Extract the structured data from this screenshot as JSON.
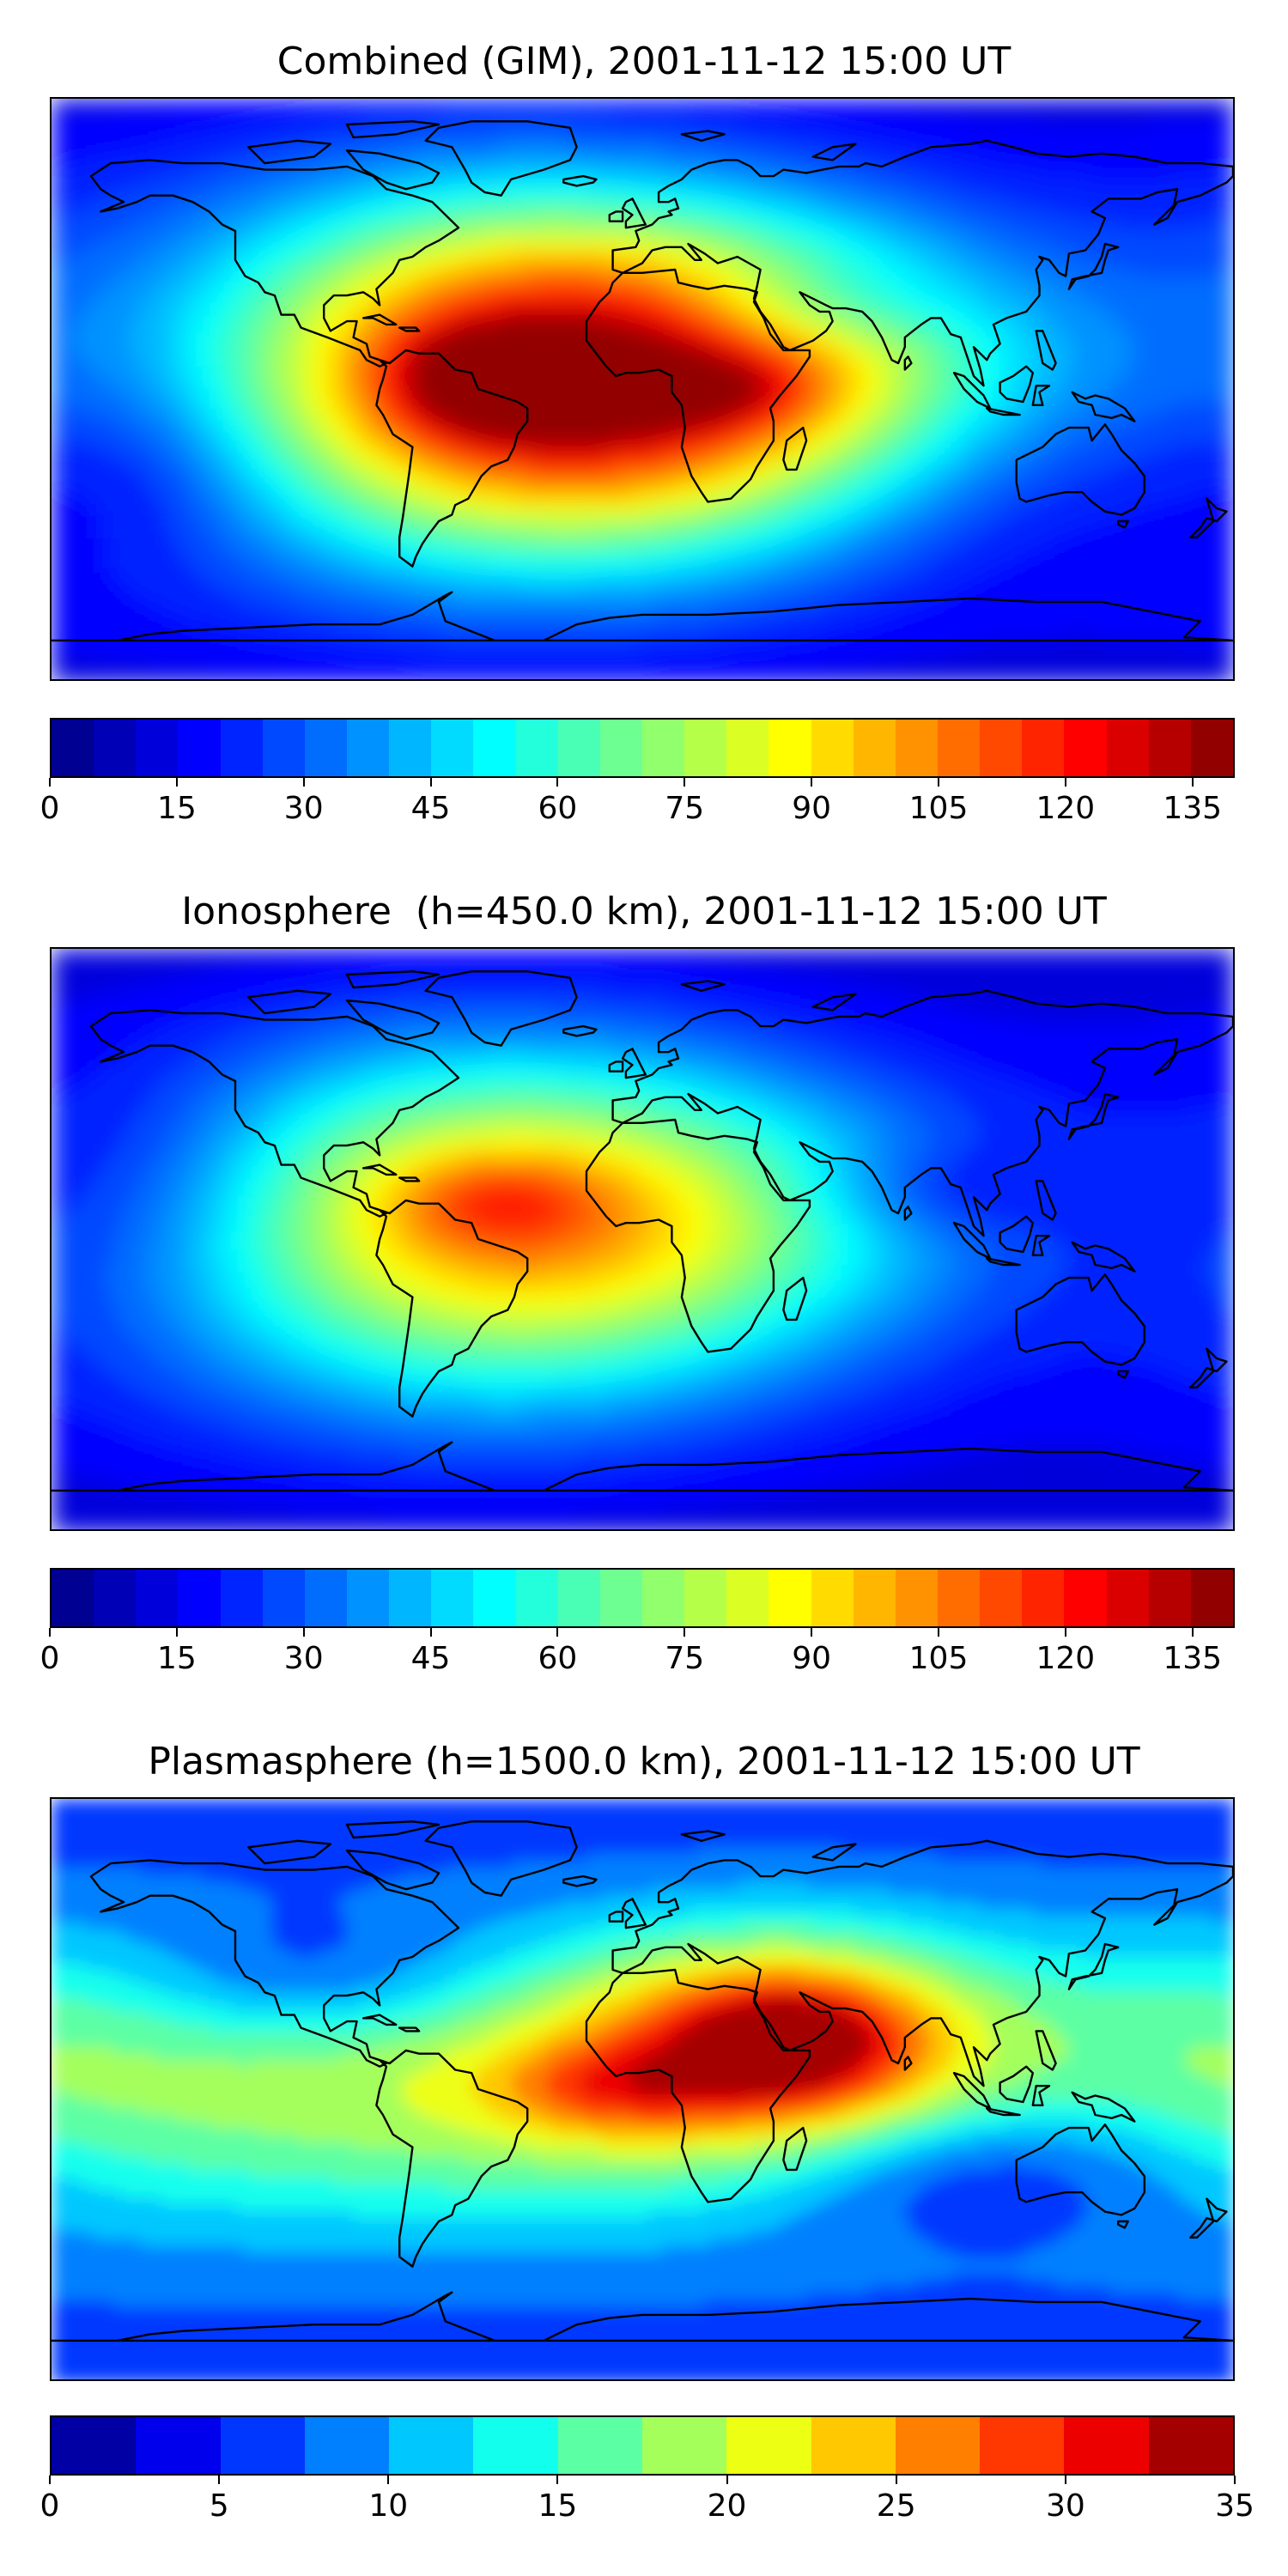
{
  "panels": [
    {
      "title": "Combined (GIM), 2001-11-12 15:00 UT",
      "colorbar": {
        "min": 0,
        "max": 140,
        "n_levels": 28,
        "ticks": [
          0,
          15,
          30,
          45,
          60,
          75,
          90,
          105,
          120,
          135
        ]
      },
      "field": {
        "background": 18,
        "blobs": [
          {
            "lon": -50,
            "lat": 8,
            "slon": 60,
            "slat": 40,
            "amp": 50
          },
          {
            "lon": -10,
            "lat": 0,
            "slon": 60,
            "slat": 38,
            "amp": 38
          },
          {
            "lon": 35,
            "lat": 2,
            "slon": 90,
            "slat": 32,
            "amp": 20
          },
          {
            "lon": 20,
            "lat": 5,
            "slon": 60,
            "slat": 35,
            "amp": 25
          },
          {
            "lon": -48,
            "lat": 0,
            "slon": 18,
            "slat": 10,
            "amp": 28
          },
          {
            "lon": -10,
            "lat": -2,
            "slon": 20,
            "slat": 8,
            "amp": 22
          },
          {
            "lon": 28,
            "lat": -1,
            "slon": 16,
            "slat": 8,
            "amp": 14
          },
          {
            "lon": -45,
            "lat": 10,
            "slon": 18,
            "slat": 7,
            "amp": 14
          },
          {
            "lon": -75,
            "lat": 0,
            "slon": 100,
            "slat": 55,
            "amp": 12
          },
          {
            "lon": 65,
            "lat": 12,
            "slon": 40,
            "slat": 22,
            "amp": 10
          },
          {
            "lon": 50,
            "lat": 25,
            "slon": 30,
            "slat": 10,
            "amp": -18
          },
          {
            "lon": -150,
            "lat": -25,
            "slon": 30,
            "slat": 20,
            "amp": -10
          },
          {
            "lon": 120,
            "lat": -30,
            "slon": 60,
            "slat": 25,
            "amp": -8
          }
        ]
      }
    },
    {
      "title": "Ionosphere  (h=450.0 km), 2001-11-12 15:00 UT",
      "colorbar": {
        "min": 0,
        "max": 140,
        "n_levels": 28,
        "ticks": [
          0,
          15,
          30,
          45,
          60,
          75,
          90,
          105,
          120,
          135
        ]
      },
      "field": {
        "background": 15,
        "blobs": [
          {
            "lon": -45,
            "lat": 5,
            "slon": 65,
            "slat": 40,
            "amp": 55
          },
          {
            "lon": 10,
            "lat": 5,
            "slon": 70,
            "slat": 30,
            "amp": 30
          },
          {
            "lon": -45,
            "lat": 12,
            "slon": 22,
            "slat": 10,
            "amp": 18
          },
          {
            "lon": -75,
            "lat": 0,
            "slon": 90,
            "slat": 50,
            "amp": 12
          },
          {
            "lon": 90,
            "lat": 15,
            "slon": 30,
            "slat": 10,
            "amp": -12
          },
          {
            "lon": -150,
            "lat": 20,
            "slon": 30,
            "slat": 25,
            "amp": -8
          }
        ]
      }
    },
    {
      "title": "Plasmasphere (h=1500.0 km), 2001-11-12 15:00 UT",
      "colorbar": {
        "min": 0,
        "max": 35,
        "n_levels": 14,
        "ticks": [
          0,
          5,
          10,
          15,
          20,
          25,
          30,
          35
        ]
      },
      "field": {
        "background": 8,
        "blobs": [
          {
            "lon": 45,
            "lat": 15,
            "slon": 45,
            "slat": 25,
            "amp": 18
          },
          {
            "lon": 45,
            "lat": 15,
            "slon": 22,
            "slat": 12,
            "amp": 8
          },
          {
            "lon": -30,
            "lat": 0,
            "slon": 70,
            "slat": 30,
            "amp": 10
          },
          {
            "lon": -10,
            "lat": 0,
            "slon": 25,
            "slat": 10,
            "amp": 6
          },
          {
            "lon": -160,
            "lat": 0,
            "slon": 70,
            "slat": 30,
            "amp": 7
          },
          {
            "lon": -100,
            "lat": 35,
            "slon": 35,
            "slat": 15,
            "amp": -5
          },
          {
            "lon": 100,
            "lat": -25,
            "slon": 45,
            "slat": 15,
            "amp": -6
          },
          {
            "lon": 160,
            "lat": 20,
            "slon": 40,
            "slat": 25,
            "amp": 3
          }
        ]
      }
    }
  ]
}
